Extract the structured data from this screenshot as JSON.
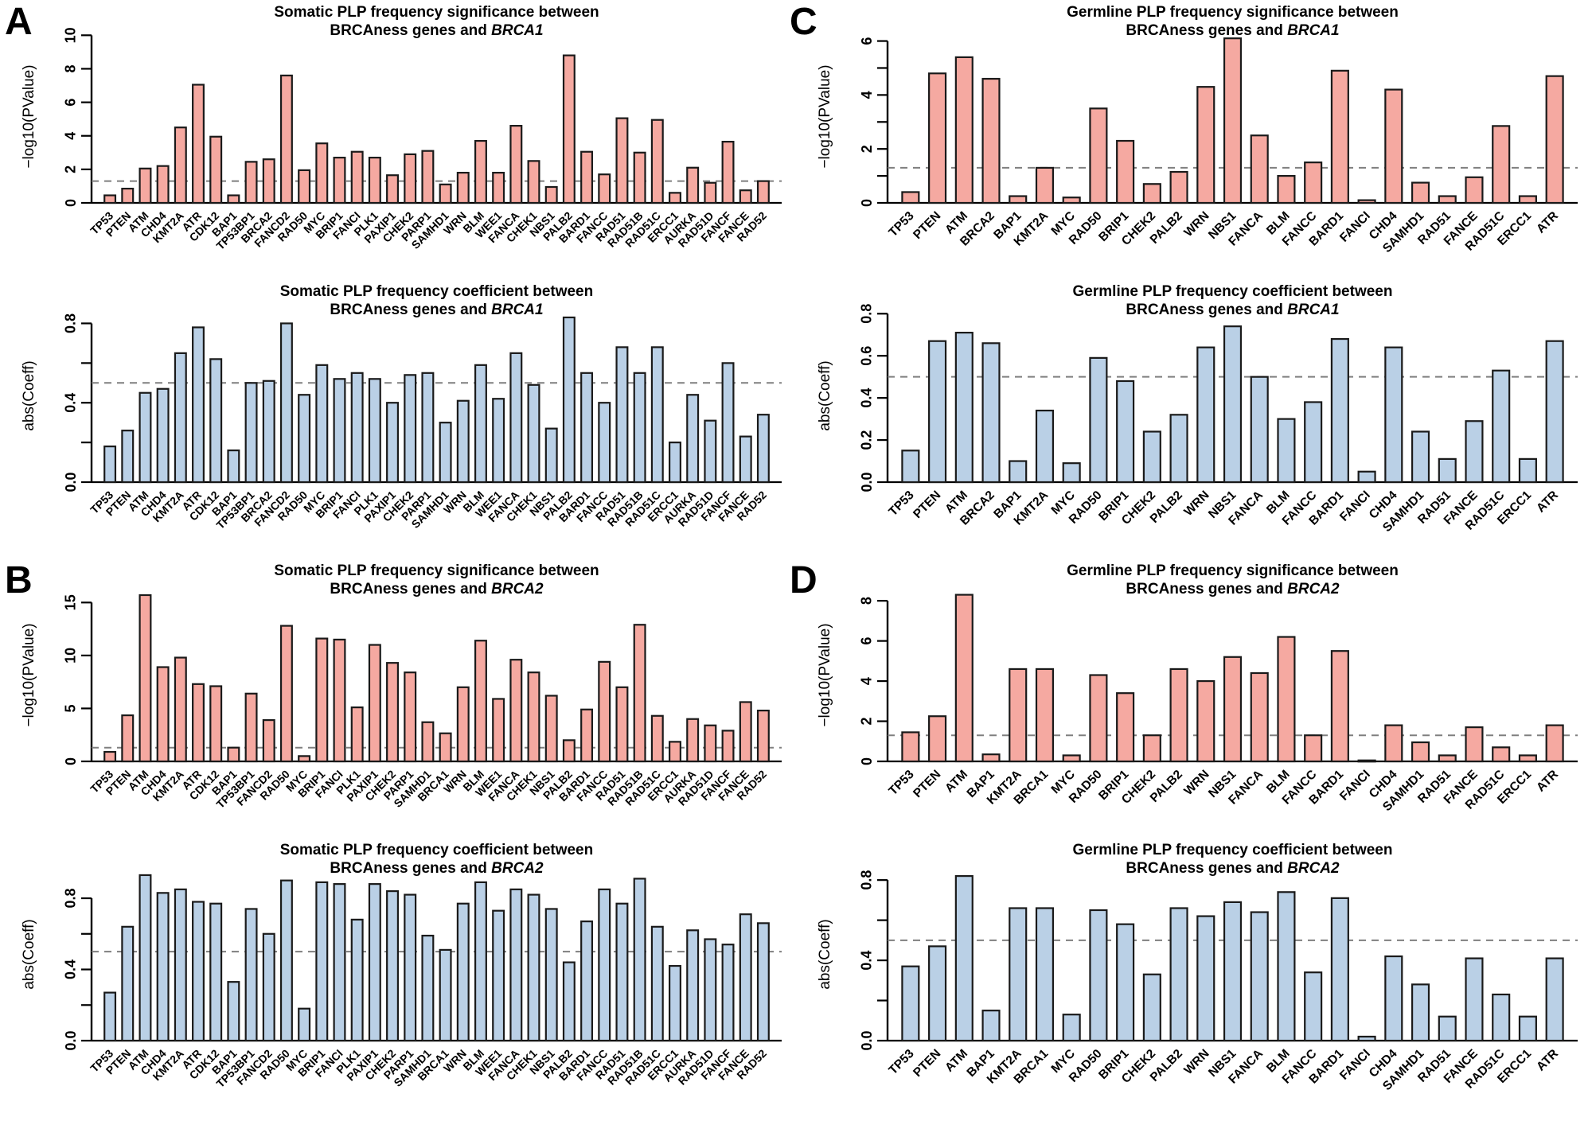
{
  "panels": [
    {
      "letter": "A"
    },
    {
      "letter": "B"
    },
    {
      "letter": "C"
    },
    {
      "letter": "D"
    }
  ],
  "colors": {
    "significance_bar": "#F5A9A1",
    "coefficient_bar": "#BAD0E6",
    "bar_stroke": "#1A1A1A",
    "threshold_line": "#7F7F7F",
    "highlight_label": "#FF0000",
    "text": "#000000"
  },
  "chart_data": [
    {
      "id": "somatic-brca1-significance",
      "type": "bar",
      "panel": "A",
      "title_line1": "Somatic PLP frequency significance between",
      "title_line2_prefix": "BRCAness genes and ",
      "title_line2_gene": "BRCA1",
      "ylabel": "−log10(PValue)",
      "bar_fill": "#F5A9A1",
      "threshold": 1.3,
      "ylim": [
        0,
        10.3
      ],
      "label_size": 14,
      "yticks": [
        {
          "v": 0,
          "label": "0"
        },
        {
          "v": 2,
          "label": "2"
        },
        {
          "v": 4,
          "label": "4"
        },
        {
          "v": 6,
          "label": "6"
        },
        {
          "v": 8,
          "label": "8"
        },
        {
          "v": 10,
          "label": "10"
        }
      ],
      "highlight_gene": "BRCA2",
      "categories": [
        "TP53",
        "PTEN",
        "ATM",
        "CHD4",
        "KMT2A",
        "ATR",
        "CDK12",
        "BAP1",
        "TP53BP1",
        "BRCA2",
        "FANCD2",
        "RAD50",
        "MYC",
        "BRIP1",
        "FANCI",
        "PLK1",
        "PAXIP1",
        "CHEK2",
        "PARP1",
        "SAMHD1",
        "WRN",
        "BLM",
        "WEE1",
        "FANCA",
        "CHEK1",
        "NBS1",
        "PALB2",
        "BARD1",
        "FANCC",
        "RAD51",
        "RAD51B",
        "RAD51C",
        "ERCC1",
        "AURKA",
        "RAD51D",
        "FANCF",
        "FANCE",
        "RAD52"
      ],
      "values": [
        0.45,
        0.85,
        2.05,
        2.2,
        4.5,
        7.05,
        3.95,
        0.45,
        2.45,
        2.6,
        7.6,
        1.95,
        3.55,
        2.7,
        3.05,
        2.7,
        1.65,
        2.9,
        3.1,
        1.1,
        1.8,
        3.7,
        1.8,
        4.6,
        2.5,
        0.95,
        8.8,
        3.05,
        1.7,
        5.05,
        3.0,
        4.95,
        0.6,
        2.1,
        1.2,
        3.65,
        0.75,
        1.3
      ]
    },
    {
      "id": "somatic-brca1-coefficient",
      "type": "bar",
      "panel": "A",
      "title_line1": "Somatic PLP frequency coefficient between",
      "title_line2_prefix": "BRCAness genes and ",
      "title_line2_gene": "BRCA1",
      "ylabel": "abs(Coeff)",
      "bar_fill": "#BAD0E6",
      "threshold": 0.5,
      "ylim": [
        0,
        0.87
      ],
      "label_size": 14,
      "yticks": [
        {
          "v": 0,
          "label": "0.0"
        },
        {
          "v": 0.2,
          "label": ""
        },
        {
          "v": 0.4,
          "label": "0.4"
        },
        {
          "v": 0.6,
          "label": ""
        },
        {
          "v": 0.8,
          "label": "0.8"
        }
      ],
      "highlight_gene": "BRCA2",
      "categories": [
        "TP53",
        "PTEN",
        "ATM",
        "CHD4",
        "KMT2A",
        "ATR",
        "CDK12",
        "BAP1",
        "TP53BP1",
        "BRCA2",
        "FANCD2",
        "RAD50",
        "MYC",
        "BRIP1",
        "FANCI",
        "PLK1",
        "PAXIP1",
        "CHEK2",
        "PARP1",
        "SAMHD1",
        "WRN",
        "BLM",
        "WEE1",
        "FANCA",
        "CHEK1",
        "NBS1",
        "PALB2",
        "BARD1",
        "FANCC",
        "RAD51",
        "RAD51B",
        "RAD51C",
        "ERCC1",
        "AURKA",
        "RAD51D",
        "FANCF",
        "FANCE",
        "RAD52"
      ],
      "values": [
        0.18,
        0.26,
        0.45,
        0.47,
        0.65,
        0.78,
        0.62,
        0.16,
        0.5,
        0.51,
        0.8,
        0.44,
        0.59,
        0.52,
        0.55,
        0.52,
        0.4,
        0.54,
        0.55,
        0.3,
        0.41,
        0.59,
        0.42,
        0.65,
        0.49,
        0.27,
        0.83,
        0.55,
        0.4,
        0.68,
        0.55,
        0.68,
        0.2,
        0.44,
        0.31,
        0.6,
        0.23,
        0.34
      ]
    },
    {
      "id": "somatic-brca2-significance",
      "type": "bar",
      "panel": "B",
      "title_line1": "Somatic PLP frequency significance between",
      "title_line2_prefix": "BRCAness genes and ",
      "title_line2_gene": "BRCA2",
      "ylabel": "−log10(PValue)",
      "bar_fill": "#F5A9A1",
      "threshold": 1.3,
      "ylim": [
        0,
        16.3
      ],
      "label_size": 14,
      "yticks": [
        {
          "v": 0,
          "label": "0"
        },
        {
          "v": 5,
          "label": "5"
        },
        {
          "v": 10,
          "label": "10"
        },
        {
          "v": 15,
          "label": "15"
        }
      ],
      "highlight_gene": "BRCA1",
      "categories": [
        "TP53",
        "PTEN",
        "ATM",
        "CHD4",
        "KMT2A",
        "ATR",
        "CDK12",
        "BAP1",
        "TP53BP1",
        "FANCD2",
        "RAD50",
        "MYC",
        "BRIP1",
        "FANCI",
        "PLK1",
        "PAXIP1",
        "CHEK2",
        "PARP1",
        "SAMHD1",
        "BRCA1",
        "WRN",
        "BLM",
        "WEE1",
        "FANCA",
        "CHEK1",
        "NBS1",
        "PALB2",
        "BARD1",
        "FANCC",
        "RAD51",
        "RAD51B",
        "RAD51C",
        "ERCC1",
        "AURKA",
        "RAD51D",
        "FANCF",
        "FANCE",
        "RAD52"
      ],
      "values": [
        0.9,
        4.35,
        15.7,
        8.9,
        9.8,
        7.3,
        7.1,
        1.3,
        6.4,
        3.9,
        12.8,
        0.5,
        11.6,
        11.5,
        5.1,
        11.0,
        9.3,
        8.4,
        3.7,
        2.65,
        7.0,
        11.4,
        5.9,
        9.6,
        8.4,
        6.2,
        2.0,
        4.9,
        9.4,
        7.0,
        12.9,
        4.3,
        1.85,
        4.0,
        3.4,
        2.9,
        5.6,
        4.8
      ]
    },
    {
      "id": "somatic-brca2-coefficient",
      "type": "bar",
      "panel": "B",
      "title_line1": "Somatic PLP frequency coefficient between",
      "title_line2_prefix": "BRCAness genes and ",
      "title_line2_gene": "BRCA2",
      "ylabel": "abs(Coeff)",
      "bar_fill": "#BAD0E6",
      "threshold": 0.5,
      "ylim": [
        0,
        0.97
      ],
      "label_size": 14,
      "yticks": [
        {
          "v": 0,
          "label": "0.0"
        },
        {
          "v": 0.2,
          "label": ""
        },
        {
          "v": 0.4,
          "label": "0.4"
        },
        {
          "v": 0.6,
          "label": ""
        },
        {
          "v": 0.8,
          "label": "0.8"
        }
      ],
      "highlight_gene": "BRCA1",
      "categories": [
        "TP53",
        "PTEN",
        "ATM",
        "CHD4",
        "KMT2A",
        "ATR",
        "CDK12",
        "BAP1",
        "TP53BP1",
        "FANCD2",
        "RAD50",
        "MYC",
        "BRIP1",
        "FANCI",
        "PLK1",
        "PAXIP1",
        "CHEK2",
        "PARP1",
        "SAMHD1",
        "BRCA1",
        "WRN",
        "BLM",
        "WEE1",
        "FANCA",
        "CHEK1",
        "NBS1",
        "PALB2",
        "BARD1",
        "FANCC",
        "RAD51",
        "RAD51B",
        "RAD51C",
        "ERCC1",
        "AURKA",
        "RAD51D",
        "FANCF",
        "FANCE",
        "RAD52"
      ],
      "values": [
        0.27,
        0.64,
        0.93,
        0.83,
        0.85,
        0.78,
        0.77,
        0.33,
        0.74,
        0.6,
        0.9,
        0.18,
        0.89,
        0.88,
        0.68,
        0.88,
        0.84,
        0.82,
        0.59,
        0.51,
        0.77,
        0.89,
        0.73,
        0.85,
        0.82,
        0.74,
        0.44,
        0.67,
        0.85,
        0.77,
        0.91,
        0.64,
        0.42,
        0.62,
        0.57,
        0.54,
        0.71,
        0.66
      ]
    },
    {
      "id": "germline-brca1-significance",
      "type": "bar",
      "panel": "C",
      "title_line1": "Germline PLP frequency significance between",
      "title_line2_prefix": "BRCAness genes and ",
      "title_line2_gene": "BRCA1",
      "ylabel": "−log10(PValue)",
      "bar_fill": "#F5A9A1",
      "threshold": 1.3,
      "ylim": [
        0,
        6.4
      ],
      "label_size": 15.5,
      "yticks": [
        {
          "v": 0,
          "label": "0"
        },
        {
          "v": 1,
          "label": ""
        },
        {
          "v": 2,
          "label": "2"
        },
        {
          "v": 3,
          "label": ""
        },
        {
          "v": 4,
          "label": "4"
        },
        {
          "v": 5,
          "label": ""
        },
        {
          "v": 6,
          "label": "6"
        }
      ],
      "highlight_gene": "BRCA2",
      "categories": [
        "TP53",
        "PTEN",
        "ATM",
        "BRCA2",
        "BAP1",
        "KMT2A",
        "MYC",
        "RAD50",
        "BRIP1",
        "CHEK2",
        "PALB2",
        "WRN",
        "NBS1",
        "FANCA",
        "BLM",
        "FANCC",
        "BARD1",
        "FANCI",
        "CHD4",
        "SAMHD1",
        "RAD51",
        "FANCE",
        "RAD51C",
        "ERCC1",
        "ATR"
      ],
      "values": [
        0.4,
        4.8,
        5.4,
        4.6,
        0.25,
        1.3,
        0.2,
        3.5,
        2.3,
        0.7,
        1.15,
        4.3,
        6.1,
        2.5,
        1.0,
        1.5,
        4.9,
        0.1,
        4.2,
        0.75,
        0.25,
        0.95,
        2.85,
        0.25,
        4.7
      ]
    },
    {
      "id": "germline-brca1-coefficient",
      "type": "bar",
      "panel": "C",
      "title_line1": "Germline PLP frequency coefficient between",
      "title_line2_prefix": "BRCAness genes and ",
      "title_line2_gene": "BRCA1",
      "ylabel": "abs(Coeff)",
      "bar_fill": "#BAD0E6",
      "threshold": 0.5,
      "ylim": [
        0,
        0.82
      ],
      "label_size": 15.5,
      "yticks": [
        {
          "v": 0,
          "label": "0.0"
        },
        {
          "v": 0.2,
          "label": "0.2"
        },
        {
          "v": 0.4,
          "label": "0.4"
        },
        {
          "v": 0.6,
          "label": "0.6"
        },
        {
          "v": 0.8,
          "label": "0.8"
        }
      ],
      "highlight_gene": "BRCA2",
      "categories": [
        "TP53",
        "PTEN",
        "ATM",
        "BRCA2",
        "BAP1",
        "KMT2A",
        "MYC",
        "RAD50",
        "BRIP1",
        "CHEK2",
        "PALB2",
        "WRN",
        "NBS1",
        "FANCA",
        "BLM",
        "FANCC",
        "BARD1",
        "FANCI",
        "CHD4",
        "SAMHD1",
        "RAD51",
        "FANCE",
        "RAD51C",
        "ERCC1",
        "ATR"
      ],
      "values": [
        0.15,
        0.67,
        0.71,
        0.66,
        0.1,
        0.34,
        0.09,
        0.59,
        0.48,
        0.24,
        0.32,
        0.64,
        0.74,
        0.5,
        0.3,
        0.38,
        0.68,
        0.05,
        0.64,
        0.24,
        0.11,
        0.29,
        0.53,
        0.11,
        0.67
      ]
    },
    {
      "id": "germline-brca2-significance",
      "type": "bar",
      "panel": "D",
      "title_line1": "Germline PLP frequency significance between",
      "title_line2_prefix": "BRCAness genes and ",
      "title_line2_gene": "BRCA2",
      "ylabel": "−log10(PValue)",
      "bar_fill": "#F5A9A1",
      "threshold": 1.3,
      "ylim": [
        0,
        8.6
      ],
      "label_size": 15.5,
      "yticks": [
        {
          "v": 0,
          "label": "0"
        },
        {
          "v": 2,
          "label": "2"
        },
        {
          "v": 4,
          "label": "4"
        },
        {
          "v": 6,
          "label": "6"
        },
        {
          "v": 8,
          "label": "8"
        }
      ],
      "highlight_gene": "BRCA1",
      "categories": [
        "TP53",
        "PTEN",
        "ATM",
        "BAP1",
        "KMT2A",
        "BRCA1",
        "MYC",
        "RAD50",
        "BRIP1",
        "CHEK2",
        "PALB2",
        "WRN",
        "NBS1",
        "FANCA",
        "BLM",
        "FANCC",
        "BARD1",
        "FANCI",
        "CHD4",
        "SAMHD1",
        "RAD51",
        "FANCE",
        "RAD51C",
        "ERCC1",
        "ATR"
      ],
      "values": [
        1.45,
        2.25,
        8.3,
        0.35,
        4.6,
        4.6,
        0.3,
        4.3,
        3.4,
        1.3,
        4.6,
        4.0,
        5.2,
        4.4,
        6.2,
        1.3,
        5.5,
        0.05,
        1.8,
        0.95,
        0.3,
        1.7,
        0.7,
        0.3,
        1.8
      ]
    },
    {
      "id": "germline-brca2-coefficient",
      "type": "bar",
      "panel": "D",
      "title_line1": "Germline PLP frequency coefficient between",
      "title_line2_prefix": "BRCAness genes and ",
      "title_line2_gene": "BRCA2",
      "ylabel": "abs(Coeff)",
      "bar_fill": "#BAD0E6",
      "threshold": 0.5,
      "ylim": [
        0,
        0.86
      ],
      "label_size": 15.5,
      "yticks": [
        {
          "v": 0,
          "label": "0.0"
        },
        {
          "v": 0.2,
          "label": ""
        },
        {
          "v": 0.4,
          "label": "0.4"
        },
        {
          "v": 0.6,
          "label": ""
        },
        {
          "v": 0.8,
          "label": "0.8"
        }
      ],
      "highlight_gene": "BRCA1",
      "categories": [
        "TP53",
        "PTEN",
        "ATM",
        "BAP1",
        "KMT2A",
        "BRCA1",
        "MYC",
        "RAD50",
        "BRIP1",
        "CHEK2",
        "PALB2",
        "WRN",
        "NBS1",
        "FANCA",
        "BLM",
        "FANCC",
        "BARD1",
        "FANCI",
        "CHD4",
        "SAMHD1",
        "RAD51",
        "FANCE",
        "RAD51C",
        "ERCC1",
        "ATR"
      ],
      "values": [
        0.37,
        0.47,
        0.82,
        0.15,
        0.66,
        0.66,
        0.13,
        0.65,
        0.58,
        0.33,
        0.66,
        0.62,
        0.69,
        0.64,
        0.74,
        0.34,
        0.71,
        0.02,
        0.42,
        0.28,
        0.12,
        0.41,
        0.23,
        0.12,
        0.41
      ]
    }
  ]
}
